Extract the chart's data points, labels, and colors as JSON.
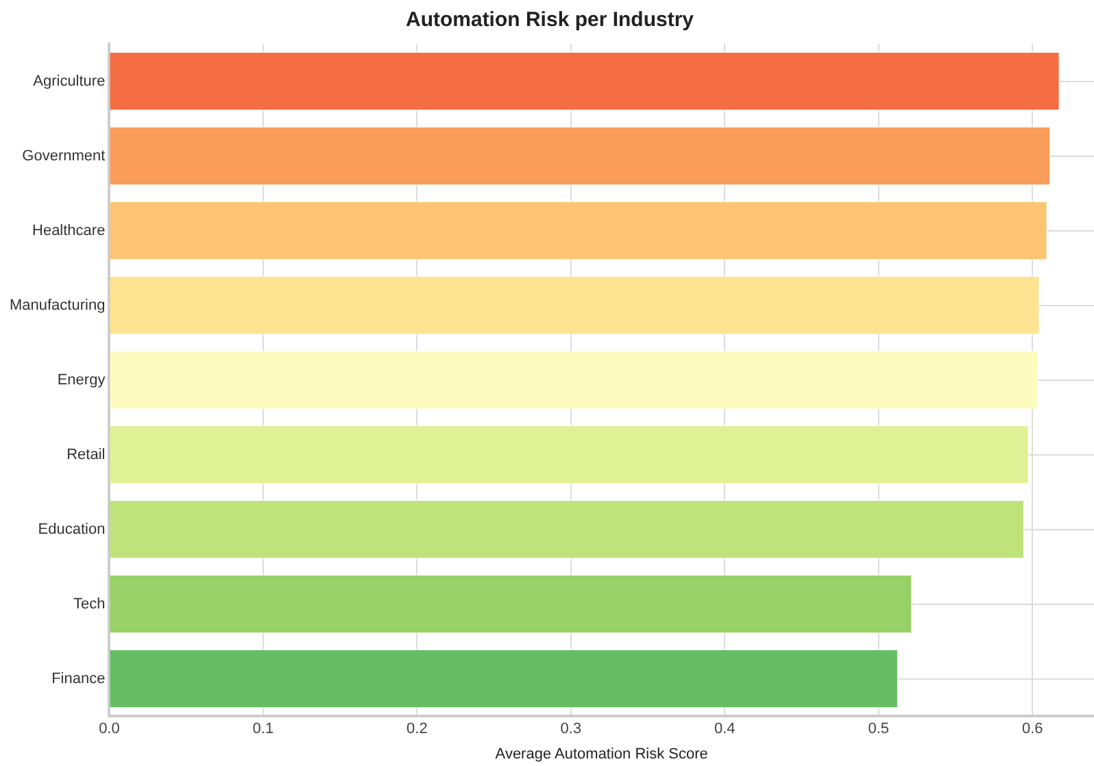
{
  "chart_data": {
    "type": "bar",
    "orientation": "horizontal",
    "title": "Automation Risk per Industry",
    "xlabel": "Average Automation Risk Score",
    "categories": [
      "Agriculture",
      "Government",
      "Healthcare",
      "Manufacturing",
      "Energy",
      "Retail",
      "Education",
      "Tech",
      "Finance"
    ],
    "values": [
      0.618,
      0.612,
      0.61,
      0.605,
      0.604,
      0.598,
      0.595,
      0.522,
      0.513
    ],
    "colors": [
      "#f46d43",
      "#fa9c5a",
      "#fdc473",
      "#fee391",
      "#fefbc0",
      "#e0f195",
      "#bfe37a",
      "#97d167",
      "#66bd63"
    ],
    "xlim": [
      0,
      0.64
    ],
    "xticks": [
      {
        "value": 0,
        "label": "0.0"
      },
      0.1,
      0.2,
      0.3,
      0.4,
      0.5,
      0.6
    ],
    "grid": true,
    "legend": false
  }
}
